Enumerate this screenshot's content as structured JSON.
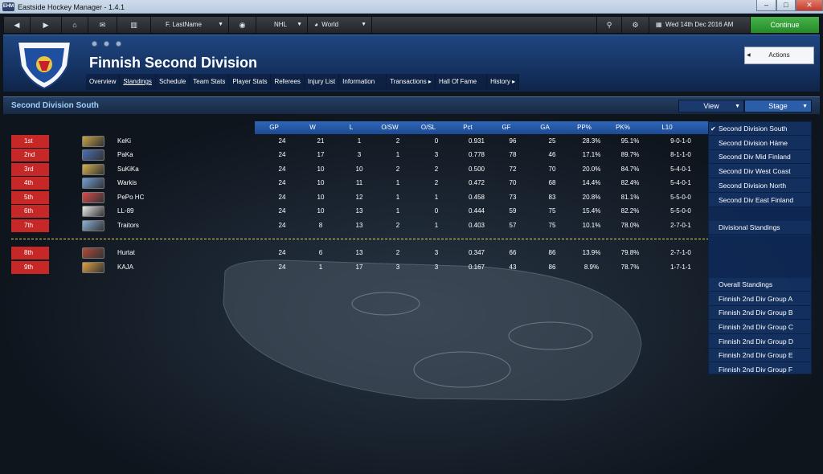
{
  "window": {
    "title": "Eastside Hockey Manager - 1.4.1",
    "app_icon_text": "EHM"
  },
  "toolbar": {
    "manager_name": "F. LastName",
    "league": "NHL",
    "region": "World",
    "date": "Wed 14th Dec 2016 AM",
    "continue_label": "Continue"
  },
  "header": {
    "title": "Finnish Second Division",
    "actions_label": "Actions",
    "tabs": [
      {
        "label": "Overview"
      },
      {
        "label": "Standings"
      },
      {
        "label": "Schedule"
      },
      {
        "label": "Team Stats"
      },
      {
        "label": "Player Stats"
      },
      {
        "label": "Referees"
      },
      {
        "label": "Injury List"
      },
      {
        "label": "Information"
      },
      {
        "label": "Transactions ▸"
      },
      {
        "label": "Hall Of Fame"
      },
      {
        "label": "History ▸"
      }
    ]
  },
  "section": {
    "title": "Second Division South",
    "view_label": "View",
    "stage_label": "Stage"
  },
  "table": {
    "columns": [
      "GP",
      "W",
      "L",
      "O/SW",
      "O/SL",
      "Pct",
      "GF",
      "GA",
      "PP%",
      "PK%",
      "L10"
    ],
    "rows": [
      {
        "pos": "1st",
        "team": "KeKi",
        "cells": [
          "24",
          "21",
          "1",
          "2",
          "0",
          "0.931",
          "96",
          "25",
          "28.3%",
          "95.1%",
          "9-0-1-0"
        ],
        "logo": "#c9a24a"
      },
      {
        "pos": "2nd",
        "team": "PaKa",
        "cells": [
          "24",
          "17",
          "3",
          "1",
          "3",
          "0.778",
          "78",
          "46",
          "17.1%",
          "89.7%",
          "8-1-1-0"
        ],
        "logo": "#4a6fb5"
      },
      {
        "pos": "3rd",
        "team": "SuKiKa",
        "cells": [
          "24",
          "10",
          "10",
          "2",
          "2",
          "0.500",
          "72",
          "70",
          "20.0%",
          "84.7%",
          "5-4-0-1"
        ],
        "logo": "#d6b24a"
      },
      {
        "pos": "4th",
        "team": "Warkis",
        "cells": [
          "24",
          "10",
          "11",
          "1",
          "2",
          "0.472",
          "70",
          "68",
          "14.4%",
          "82.4%",
          "5-4-0-1"
        ],
        "logo": "#6fa0d8"
      },
      {
        "pos": "5th",
        "team": "PePo HC",
        "cells": [
          "24",
          "10",
          "12",
          "1",
          "1",
          "0.458",
          "73",
          "83",
          "20.8%",
          "81.1%",
          "5-5-0-0"
        ],
        "logo": "#d84a4a"
      },
      {
        "pos": "6th",
        "team": "LL-89",
        "cells": [
          "24",
          "10",
          "13",
          "1",
          "0",
          "0.444",
          "59",
          "75",
          "15.4%",
          "82.2%",
          "5-5-0-0"
        ],
        "logo": "#e8e8e8"
      },
      {
        "pos": "7th",
        "team": "Traitors",
        "cells": [
          "24",
          "8",
          "13",
          "2",
          "1",
          "0.403",
          "57",
          "75",
          "10.1%",
          "78.0%",
          "2-7-0-1"
        ],
        "logo": "#8ab0d8"
      },
      {
        "pos": "8th",
        "team": "Hurtat",
        "cells": [
          "24",
          "6",
          "13",
          "2",
          "3",
          "0.347",
          "66",
          "86",
          "13.9%",
          "79.8%",
          "2-7-1-0"
        ],
        "logo": "#b04a3a"
      },
      {
        "pos": "9th",
        "team": "KAJA",
        "cells": [
          "24",
          "1",
          "17",
          "3",
          "3",
          "0.167",
          "43",
          "86",
          "8.9%",
          "78.7%",
          "1-7-1-1"
        ],
        "logo": "#e0a040"
      }
    ]
  },
  "stage_menu": {
    "group1": [
      "Second Division South",
      "Second Division Häme",
      "Second Div Mid Finland",
      "Second Div West Coast",
      "Second Division North",
      "Second Div East Finland"
    ],
    "group2": [
      "Divisional Standings"
    ],
    "group3": [
      "Overall Standings",
      "Finnish 2nd Div Group A",
      "Finnish 2nd Div Group B",
      "Finnish 2nd Div Group C",
      "Finnish 2nd Div Group D",
      "Finnish 2nd Div Group E",
      "Finnish 2nd Div Group F"
    ]
  },
  "colors": {
    "accent": "#2f66b8",
    "position_badge": "#c62828",
    "continue": "#48b24a",
    "section_title": "#9fd0ff"
  }
}
